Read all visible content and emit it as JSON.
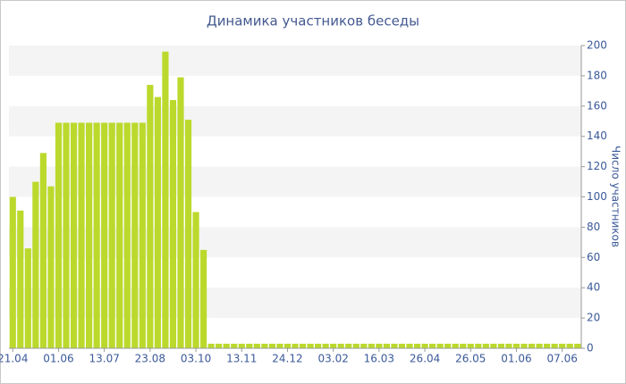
{
  "chart_data": {
    "type": "bar",
    "title": "Динамика участников беседы",
    "y_axis_label": "Число участников",
    "categories": [
      "21.04",
      null,
      null,
      null,
      null,
      null,
      "01.06",
      null,
      null,
      null,
      null,
      null,
      "13.07",
      null,
      null,
      null,
      null,
      null,
      "23.08",
      null,
      null,
      null,
      null,
      null,
      "03.10",
      null,
      null,
      null,
      null,
      null,
      "13.11",
      null,
      null,
      null,
      null,
      null,
      "24.12",
      null,
      null,
      null,
      null,
      null,
      "03.02",
      null,
      null,
      null,
      null,
      null,
      "16.03",
      null,
      null,
      null,
      null,
      null,
      "26.04",
      null,
      null,
      null,
      null,
      null,
      "26.05",
      null,
      null,
      null,
      null,
      null,
      "01.06",
      null,
      null,
      null,
      null,
      null,
      "07.06",
      null,
      null
    ],
    "values": [
      100,
      91,
      66,
      110,
      129,
      107,
      149,
      149,
      149,
      149,
      149,
      149,
      149,
      149,
      149,
      149,
      149,
      149,
      174,
      166,
      196,
      164,
      179,
      151,
      90,
      65,
      3,
      3,
      3,
      3,
      3,
      3,
      3,
      3,
      3,
      3,
      3,
      3,
      3,
      3,
      3,
      3,
      3,
      3,
      3,
      3,
      3,
      3,
      3,
      3,
      3,
      3,
      3,
      3,
      3,
      3,
      3,
      3,
      3,
      3,
      3,
      3,
      3,
      3,
      3,
      3,
      3,
      3,
      3,
      3,
      3,
      3,
      3,
      3,
      3
    ],
    "color": "#bbd92c",
    "ylim": [
      0,
      200
    ],
    "yticks": [
      0,
      20,
      40,
      60,
      80,
      100,
      120,
      140,
      160,
      180,
      200
    ],
    "grid": "bands",
    "y_axis_side": "right"
  }
}
